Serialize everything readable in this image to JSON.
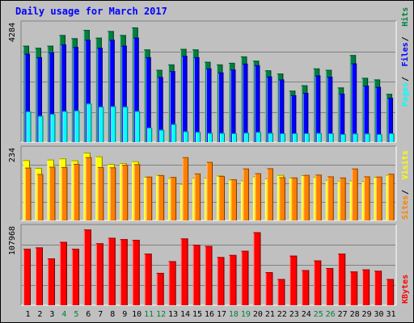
{
  "chart_data": [
    {
      "title": "Daily usage for March 2017",
      "type": "bar",
      "panel": "hits-files-pages",
      "categories": [
        "1",
        "2",
        "3",
        "4",
        "5",
        "6",
        "7",
        "8",
        "9",
        "10",
        "11",
        "12",
        "13",
        "14",
        "15",
        "16",
        "17",
        "18",
        "19",
        "20",
        "21",
        "22",
        "23",
        "24",
        "25",
        "26",
        "27",
        "28",
        "29",
        "30",
        "31"
      ],
      "weekend_days": [
        "4",
        "5",
        "11",
        "12",
        "18",
        "19",
        "25",
        "26"
      ],
      "ymax_label": "4284",
      "ymax": 4284,
      "series": [
        {
          "name": "Hits",
          "color": "#008040",
          "values": [
            3600,
            3520,
            3600,
            4000,
            3880,
            4190,
            3900,
            4150,
            4000,
            4284,
            3460,
            2700,
            2900,
            3480,
            3460,
            3000,
            2900,
            2960,
            3200,
            3040,
            2680,
            2560,
            1920,
            2120,
            2750,
            2700,
            2040,
            3250,
            2400,
            2340,
            1800
          ]
        },
        {
          "name": "Files",
          "color": "#0000ff",
          "values": [
            3300,
            3170,
            3350,
            3650,
            3550,
            3820,
            3520,
            3820,
            3600,
            3900,
            3170,
            2430,
            2650,
            3220,
            3170,
            2750,
            2600,
            2710,
            2930,
            2870,
            2450,
            2340,
            1750,
            1840,
            2490,
            2440,
            1810,
            2940,
            2110,
            2060,
            1650
          ]
        },
        {
          "name": "Pages",
          "color": "#00ffff",
          "values": [
            1150,
            980,
            1050,
            1160,
            1180,
            1440,
            1320,
            1340,
            1320,
            1160,
            540,
            460,
            670,
            400,
            380,
            340,
            340,
            330,
            350,
            380,
            340,
            330,
            330,
            330,
            340,
            330,
            300,
            320,
            320,
            300,
            330
          ]
        }
      ]
    },
    {
      "type": "bar",
      "panel": "visits-sites",
      "categories": [
        "1",
        "2",
        "3",
        "4",
        "5",
        "6",
        "7",
        "8",
        "9",
        "10",
        "11",
        "12",
        "13",
        "14",
        "15",
        "16",
        "17",
        "18",
        "19",
        "20",
        "21",
        "22",
        "23",
        "24",
        "25",
        "26",
        "27",
        "28",
        "29",
        "30",
        "31"
      ],
      "ymax_label": "234",
      "ymax": 234,
      "series": [
        {
          "name": "Visits",
          "color": "#ffff00",
          "values": [
            208,
            181,
            210,
            214,
            207,
            234,
            221,
            195,
            198,
            204,
            151,
            157,
            146,
            126,
            147,
            148,
            155,
            141,
            138,
            152,
            145,
            157,
            148,
            156,
            150,
            140,
            137,
            138,
            136,
            150,
            157
          ]
        },
        {
          "name": "Sites",
          "color": "#ff8000",
          "values": [
            182,
            160,
            185,
            184,
            195,
            218,
            184,
            183,
            192,
            194,
            151,
            156,
            150,
            218,
            162,
            202,
            153,
            142,
            179,
            163,
            180,
            149,
            148,
            157,
            158,
            152,
            148,
            179,
            152,
            151,
            161
          ]
        }
      ]
    },
    {
      "type": "bar",
      "panel": "kbytes",
      "categories": [
        "1",
        "2",
        "3",
        "4",
        "5",
        "6",
        "7",
        "8",
        "9",
        "10",
        "11",
        "12",
        "13",
        "14",
        "15",
        "16",
        "17",
        "18",
        "19",
        "20",
        "21",
        "22",
        "23",
        "24",
        "25",
        "26",
        "27",
        "28",
        "29",
        "30",
        "31"
      ],
      "ymax_label": "107968",
      "ymax": 107968,
      "series": [
        {
          "name": "KBytes",
          "color": "#ff0000",
          "values": [
            82000,
            84000,
            68000,
            92000,
            82000,
            110000,
            90000,
            98000,
            96000,
            95000,
            75000,
            47000,
            64000,
            97000,
            88000,
            86000,
            70000,
            73000,
            79000,
            106000,
            48000,
            38000,
            72000,
            51000,
            65000,
            54000,
            75000,
            49000,
            52000,
            50000,
            38000
          ]
        }
      ]
    }
  ]
}
